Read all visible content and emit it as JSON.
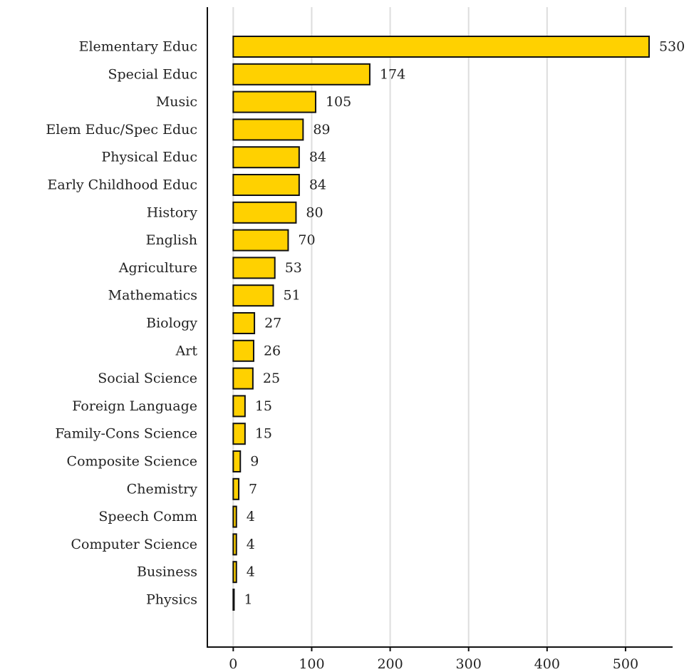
{
  "chart_data": {
    "type": "bar",
    "orientation": "horizontal",
    "title": "",
    "xlabel": "",
    "ylabel": "",
    "categories": [
      "Elementary Educ",
      "Special Educ",
      "Music",
      "Elem Educ/Spec Educ",
      "Physical Educ",
      "Early Childhood Educ",
      "History",
      "English",
      "Agriculture",
      "Mathematics",
      "Biology",
      "Art",
      "Social Science",
      "Foreign Language",
      "Family-Cons Science",
      "Composite Science",
      "Chemistry",
      "Speech Comm",
      "Computer Science",
      "Business",
      "Physics"
    ],
    "values": [
      530,
      174,
      105,
      89,
      84,
      84,
      80,
      70,
      53,
      51,
      27,
      26,
      25,
      15,
      15,
      9,
      7,
      4,
      4,
      4,
      1
    ],
    "data_labels": [
      "530",
      "174",
      "105",
      "89",
      "84",
      "84",
      "80",
      "70",
      "53",
      "51",
      "27",
      "26",
      "25",
      "15",
      "15",
      "9",
      "7",
      "4",
      "4",
      "4",
      "1"
    ],
    "xlim": [
      -33,
      560
    ],
    "x_ticks": [
      0,
      100,
      200,
      300,
      400,
      500
    ],
    "x_tick_labels": [
      "0",
      "100",
      "200",
      "300",
      "400",
      "500"
    ],
    "grid": "vertical",
    "legend": "none",
    "colors": {
      "bar_fill": "#ffd100",
      "bar_stroke": "#111111",
      "grid": "#dddddd",
      "axis": "#111111",
      "text": "#222222"
    }
  }
}
